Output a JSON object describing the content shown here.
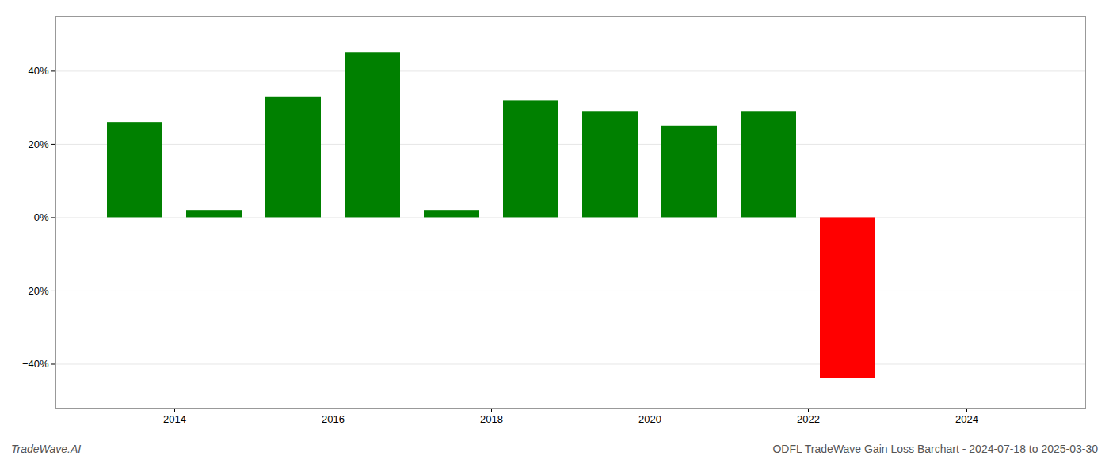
{
  "chart_data": {
    "type": "bar",
    "x": [
      2013.5,
      2014.5,
      2015.5,
      2016.5,
      2017.5,
      2018.5,
      2019.5,
      2020.5,
      2021.5,
      2022.5,
      2023.5
    ],
    "values": [
      0.26,
      0.02,
      0.33,
      0.45,
      0.02,
      0.32,
      0.29,
      0.25,
      0.29,
      -0.44,
      0.0
    ],
    "colors": [
      "#008000",
      "#008000",
      "#008000",
      "#008000",
      "#008000",
      "#008000",
      "#008000",
      "#008000",
      "#008000",
      "#ff0000",
      "#008000"
    ],
    "xlim": [
      2012.5,
      2025.5
    ],
    "xticks": [
      2014,
      2016,
      2018,
      2020,
      2022,
      2024
    ],
    "ylim": [
      -0.52,
      0.55
    ],
    "yticks": [
      {
        "value": -0.4,
        "label": "−40%"
      },
      {
        "value": -0.2,
        "label": "−20%"
      },
      {
        "value": 0.0,
        "label": "0%"
      },
      {
        "value": 0.2,
        "label": "20%"
      },
      {
        "value": 0.4,
        "label": "40%"
      }
    ],
    "grid": true,
    "annotations": [
      "TradeWave.AI",
      "ODFL TradeWave Gain Loss Barchart - 2024-07-18 to 2025-03-30"
    ]
  }
}
